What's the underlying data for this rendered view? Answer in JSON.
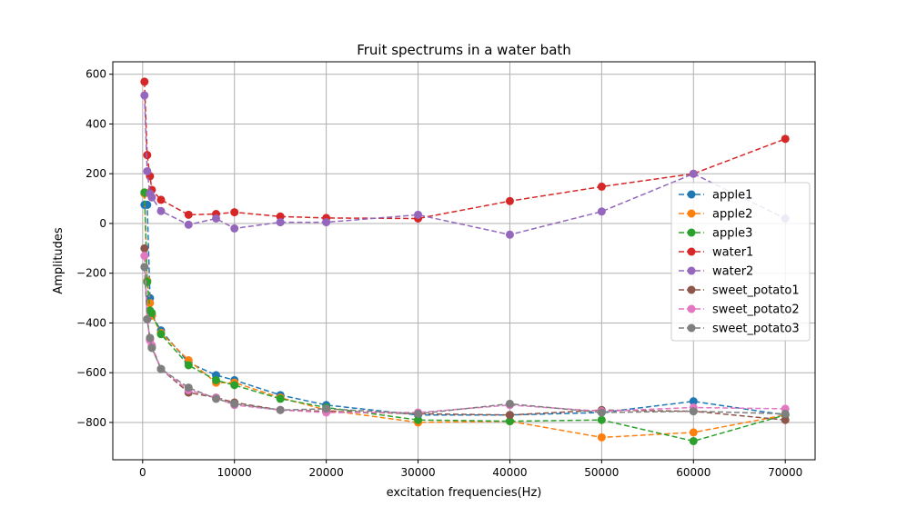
{
  "chart_data": {
    "type": "line",
    "title": "Fruit spectrums in a water bath",
    "xlabel": "excitation frequencies(Hz)",
    "ylabel": "Amplitudes",
    "xlim": [
      -3250,
      73250
    ],
    "ylim": [
      -950,
      650
    ],
    "xticks": [
      0,
      10000,
      20000,
      30000,
      40000,
      50000,
      60000,
      70000
    ],
    "xtick_labels": [
      "0",
      "10000",
      "20000",
      "30000",
      "40000",
      "50000",
      "60000",
      "70000"
    ],
    "yticks": [
      600,
      400,
      200,
      0,
      -200,
      -400,
      -600,
      -800
    ],
    "ytick_labels": [
      "600",
      "400",
      "200",
      "0",
      "−200",
      "−400",
      "−600",
      "−800"
    ],
    "grid": true,
    "legend_position": "center-right",
    "line_style": "dashed",
    "marker": "circle",
    "x": [
      200,
      500,
      800,
      1000,
      2000,
      5000,
      8000,
      10000,
      15000,
      20000,
      30000,
      40000,
      50000,
      60000,
      70000
    ],
    "series": [
      {
        "name": "apple1",
        "color": "#1f77b4",
        "values": [
          75,
          75,
          -300,
          -370,
          -430,
          -560,
          -610,
          -630,
          -690,
          -730,
          -770,
          -770,
          -760,
          -715,
          -770
        ]
      },
      {
        "name": "apple2",
        "color": "#ff7f0e",
        "values": [
          120,
          -230,
          -320,
          -370,
          -440,
          -550,
          -640,
          -640,
          -700,
          -750,
          -800,
          -795,
          -860,
          -840,
          -770
        ]
      },
      {
        "name": "apple3",
        "color": "#2ca02c",
        "values": [
          125,
          -235,
          -350,
          -360,
          -445,
          -570,
          -630,
          -650,
          -705,
          -740,
          -790,
          -795,
          -790,
          -875,
          -770
        ]
      },
      {
        "name": "water1",
        "color": "#d62728",
        "values": [
          570,
          275,
          190,
          135,
          95,
          35,
          38,
          45,
          28,
          22,
          20,
          90,
          148,
          200,
          340
        ]
      },
      {
        "name": "water2",
        "color": "#9467bd",
        "values": [
          515,
          210,
          120,
          105,
          50,
          -5,
          20,
          -20,
          5,
          5,
          35,
          -45,
          48,
          200,
          20
        ]
      },
      {
        "name": "sweet_potato1",
        "color": "#8c564b",
        "values": [
          -100,
          -385,
          -465,
          -500,
          -585,
          -680,
          -700,
          -720,
          -750,
          -755,
          -765,
          -770,
          -750,
          -755,
          -790
        ]
      },
      {
        "name": "sweet_potato2",
        "color": "#e377c2",
        "values": [
          -130,
          -385,
          -470,
          -490,
          -585,
          -670,
          -700,
          -730,
          -750,
          -760,
          -760,
          -730,
          -755,
          -740,
          -745
        ]
      },
      {
        "name": "sweet_potato3",
        "color": "#7f7f7f",
        "values": [
          -175,
          -385,
          -460,
          -500,
          -585,
          -660,
          -705,
          -725,
          -750,
          -745,
          -765,
          -725,
          -760,
          -755,
          -765
        ]
      }
    ]
  }
}
